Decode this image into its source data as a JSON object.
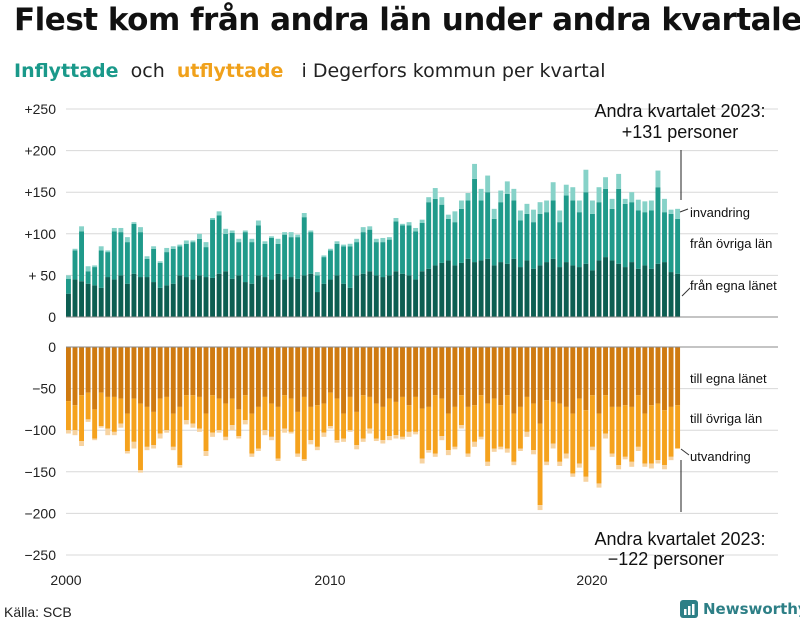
{
  "header": {
    "title": "Flest kom från andra län under andra kvartalet",
    "subtitle_in": "Inflyttade",
    "subtitle_and": "och",
    "subtitle_out": "utflyttade",
    "subtitle_rest": "i Degerfors kommun per kvartal"
  },
  "footer": {
    "source": "Källa: SCB",
    "brand": "Newsworthy"
  },
  "colors": {
    "in_local": "#0d5e52",
    "in_region": "#1f9a8a",
    "in_immigration": "#86d2c8",
    "out_local": "#cf7a10",
    "out_region": "#f5a21d",
    "out_emigration": "#f7d3a0",
    "grid": "#d8d8d8",
    "marker": "#222222"
  },
  "chart_data": {
    "type": "bar",
    "stacked": true,
    "x_start": "2000 Q1",
    "periods": 94,
    "x_ticks": [
      "2000",
      "2010",
      "2020"
    ],
    "y_ticks_top": [
      "+250",
      "+200",
      "+150",
      "+100",
      "+ 50",
      "0"
    ],
    "y_ticks_bottom": [
      "0",
      "−50",
      "−100",
      "−150",
      "−200",
      "−250"
    ],
    "ylim_top": [
      0,
      250
    ],
    "ylim_bottom": [
      -250,
      0
    ],
    "series_in": [
      {
        "name": "från egna länet",
        "values": [
          28,
          45,
          43,
          40,
          38,
          35,
          48,
          45,
          50,
          40,
          52,
          48,
          48,
          42,
          35,
          38,
          40,
          50,
          48,
          45,
          50,
          48,
          47,
          52,
          55,
          46,
          50,
          42,
          40,
          50,
          48,
          45,
          52,
          45,
          48,
          46,
          50,
          52,
          30,
          40,
          45,
          50,
          40,
          35,
          50,
          52,
          55,
          50,
          48,
          50,
          55,
          52,
          50,
          45,
          55,
          58,
          62,
          65,
          68,
          62,
          65,
          70,
          66,
          68,
          70,
          62,
          66,
          64,
          70,
          60,
          68,
          58,
          62,
          66,
          70,
          60,
          66,
          62,
          60,
          64,
          56,
          68,
          72,
          68,
          64,
          60,
          66,
          58,
          62,
          58,
          64,
          66,
          54,
          52
        ]
      },
      {
        "name": "från övriga län",
        "values": [
          18,
          35,
          60,
          15,
          22,
          45,
          30,
          58,
          52,
          50,
          60,
          54,
          22,
          40,
          30,
          40,
          42,
          35,
          40,
          45,
          44,
          36,
          70,
          70,
          45,
          55,
          40,
          60,
          50,
          60,
          40,
          50,
          36,
          54,
          48,
          50,
          70,
          50,
          20,
          32,
          35,
          38,
          45,
          50,
          40,
          50,
          50,
          40,
          42,
          43,
          60,
          58,
          60,
          58,
          58,
          80,
          80,
          70,
          50,
          52,
          65,
          70,
          100,
          72,
          80,
          56,
          72,
          84,
          70,
          56,
          56,
          56,
          62,
          60,
          70,
          54,
          80,
          78,
          66,
          86,
          68,
          70,
          82,
          62,
          90,
          76,
          72,
          70,
          64,
          70,
          92,
          60,
          70,
          66
        ]
      },
      {
        "name": "invandring",
        "values": [
          4,
          2,
          6,
          6,
          2,
          5,
          2,
          4,
          5,
          6,
          2,
          6,
          3,
          3,
          2,
          5,
          3,
          2,
          4,
          2,
          6,
          6,
          2,
          5,
          6,
          3,
          4,
          2,
          4,
          6,
          3,
          2,
          6,
          3,
          6,
          3,
          5,
          2,
          4,
          2,
          2,
          3,
          2,
          3,
          4,
          6,
          4,
          4,
          5,
          3,
          4,
          2,
          4,
          4,
          4,
          6,
          13,
          9,
          5,
          13,
          10,
          9,
          18,
          14,
          20,
          12,
          14,
          15,
          14,
          12,
          12,
          15,
          14,
          14,
          22,
          14,
          13,
          16,
          14,
          27,
          16,
          18,
          14,
          12,
          18,
          6,
          12,
          13,
          13,
          12,
          20,
          16,
          5,
          12
        ]
      }
    ],
    "series_out": [
      {
        "name": "till egna länet",
        "values": [
          -65,
          -70,
          -58,
          -55,
          -75,
          -55,
          -60,
          -60,
          -62,
          -80,
          -62,
          -68,
          -72,
          -78,
          -62,
          -60,
          -80,
          -72,
          -58,
          -58,
          -60,
          -80,
          -58,
          -62,
          -68,
          -62,
          -75,
          -58,
          -80,
          -72,
          -60,
          -68,
          -72,
          -58,
          -62,
          -78,
          -60,
          -72,
          -70,
          -68,
          -55,
          -62,
          -80,
          -60,
          -78,
          -58,
          -60,
          -68,
          -72,
          -62,
          -66,
          -60,
          -70,
          -60,
          -74,
          -72,
          -58,
          -62,
          -80,
          -72,
          -58,
          -72,
          -70,
          -58,
          -68,
          -62,
          -70,
          -58,
          -80,
          -72,
          -60,
          -68,
          -92,
          -64,
          -66,
          -68,
          -72,
          -80,
          -62,
          -76,
          -58,
          -80,
          -58,
          -72,
          -72,
          -70,
          -72,
          -58,
          -80,
          -70,
          -68,
          -76,
          -72,
          -70
        ]
      },
      {
        "name": "till övriga län",
        "values": [
          -35,
          -30,
          -55,
          -32,
          -35,
          -40,
          -38,
          -42,
          -30,
          -45,
          -52,
          -80,
          -48,
          -40,
          -42,
          -40,
          -40,
          -70,
          -30,
          -34,
          -38,
          -45,
          -45,
          -38,
          -40,
          -32,
          -32,
          -30,
          -48,
          -50,
          -40,
          -40,
          -62,
          -40,
          -40,
          -50,
          -75,
          -40,
          -50,
          -35,
          -40,
          -50,
          -30,
          -40,
          -40,
          -52,
          -38,
          -42,
          -40,
          -45,
          -40,
          -48,
          -32,
          -42,
          -60,
          -52,
          -70,
          -45,
          -44,
          -48,
          -36,
          -56,
          -44,
          -50,
          -70,
          -60,
          -50,
          -64,
          -58,
          -50,
          -42,
          -56,
          -98,
          -74,
          -50,
          -70,
          -56,
          -72,
          -78,
          -80,
          -62,
          -84,
          -46,
          -56,
          -70,
          -62,
          -66,
          -62,
          -60,
          -70,
          -68,
          -66,
          -60,
          -52
        ]
      },
      {
        "name": "utvandring",
        "values": [
          -4,
          -6,
          -6,
          -3,
          -2,
          -2,
          -8,
          -4,
          -5,
          -3,
          -8,
          -3,
          -4,
          -4,
          -6,
          -3,
          -4,
          -3,
          -5,
          -5,
          -4,
          -6,
          -5,
          -3,
          -4,
          -6,
          -3,
          -5,
          -4,
          -3,
          -6,
          -4,
          -3,
          -5,
          -2,
          -4,
          -2,
          -5,
          -4,
          -5,
          -3,
          -3,
          -4,
          -2,
          -5,
          -4,
          -6,
          -3,
          -4,
          -5,
          -4,
          -3,
          -6,
          -3,
          -6,
          -3,
          -4,
          -5,
          -6,
          -3,
          -4,
          -4,
          -6,
          -3,
          -5,
          -4,
          -3,
          -5,
          -4,
          -3,
          -6,
          -5,
          -6,
          -4,
          -6,
          -5,
          -6,
          -4,
          -5,
          -6,
          -4,
          -5,
          -6,
          -4,
          -5,
          -3,
          -6,
          -5,
          -4,
          -6,
          -4,
          -5,
          -4,
          0
        ]
      }
    ],
    "labels_in": [
      "invandring",
      "från övriga län",
      "från egna länet"
    ],
    "labels_out": [
      "till egna länet",
      "till övriga län",
      "utvandring"
    ],
    "annotation_top": [
      "Andra kvartalet 2023:",
      "+131 personer"
    ],
    "annotation_bottom": [
      "Andra kvartalet 2023:",
      "−122 personer"
    ]
  }
}
